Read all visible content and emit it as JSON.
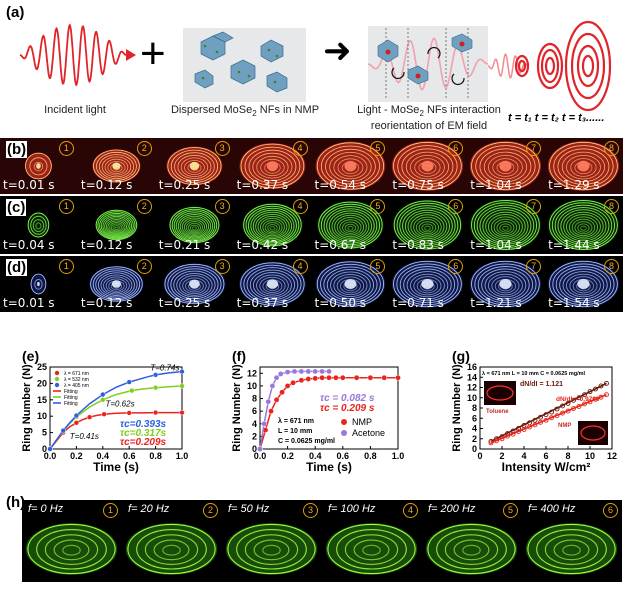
{
  "panel_a": {
    "label": "(a)",
    "incident_caption": "Incident light",
    "dispersed_caption_pre": "Dispersed MoSe",
    "dispersed_caption_sub": "2",
    "dispersed_caption_post": " NFs in NMP",
    "interaction_caption_line1": "Light - MoSe",
    "interaction_caption_sub": "2",
    "interaction_caption_line1_post": " NFs interaction",
    "interaction_caption_line2": "reorientation of EM field",
    "plus_symbol": "+",
    "arrow_symbol": "➜",
    "time_sequence": "t = t₁ t = t₂ t = t₃......"
  },
  "strip_b": {
    "label": "(b)",
    "color_core": "#fff2a0",
    "color_mid": "#ff3b2a",
    "frames": [
      {
        "num": "1",
        "time": "t=0.01 s"
      },
      {
        "num": "2",
        "time": "t=0.12 s"
      },
      {
        "num": "3",
        "time": "t=0.25 s"
      },
      {
        "num": "4",
        "time": "t=0.37 s"
      },
      {
        "num": "5",
        "time": "t=0.54 s"
      },
      {
        "num": "6",
        "time": "t=0.75 s"
      },
      {
        "num": "7",
        "time": "t=1.04 s"
      },
      {
        "num": "8",
        "time": "t=1.29 s"
      }
    ]
  },
  "strip_c": {
    "label": "(c)",
    "frames": [
      {
        "num": "1",
        "time": "t=0.04 s"
      },
      {
        "num": "2",
        "time": "t=0.12 s"
      },
      {
        "num": "3",
        "time": "t=0.21 s"
      },
      {
        "num": "4",
        "time": "t=0.42 s"
      },
      {
        "num": "5",
        "time": "t=0.67 s"
      },
      {
        "num": "6",
        "time": "t=0.83 s"
      },
      {
        "num": "7",
        "time": "t=1.04 s"
      },
      {
        "num": "8",
        "time": "t=1.44 s"
      }
    ]
  },
  "strip_d": {
    "label": "(d)",
    "frames": [
      {
        "num": "1",
        "time": "t=0.01 s"
      },
      {
        "num": "2",
        "time": "t=0.12 s"
      },
      {
        "num": "3",
        "time": "t=0.25 s"
      },
      {
        "num": "4",
        "time": "t=0.37 s"
      },
      {
        "num": "5",
        "time": "t=0.50 s"
      },
      {
        "num": "6",
        "time": "t=0.71 s"
      },
      {
        "num": "7",
        "time": "t=1.21 s"
      },
      {
        "num": "8",
        "time": "t=1.54 s"
      }
    ]
  },
  "strip_h": {
    "label": "(h)",
    "frames": [
      {
        "num": "1",
        "freq": "f= 0 Hz"
      },
      {
        "num": "2",
        "freq": "f= 20 Hz"
      },
      {
        "num": "3",
        "freq": "f= 50 Hz"
      },
      {
        "num": "4",
        "freq": "f= 100 Hz"
      },
      {
        "num": "5",
        "freq": "f= 200 Hz"
      },
      {
        "num": "6",
        "freq": "f= 400 Hz"
      }
    ]
  },
  "chart_data": [
    {
      "id": "e",
      "type": "line",
      "panel_label": "(e)",
      "xlabel": "Time (s)",
      "ylabel": "Ring Number (N)",
      "xlim": [
        0,
        1.0
      ],
      "ylim": [
        0,
        25
      ],
      "xticks": [
        "0.0",
        "0.2",
        "0.4",
        "0.6",
        "0.8",
        "1.0"
      ],
      "yticks": [
        "0",
        "5",
        "10",
        "15",
        "20",
        "25"
      ],
      "legend": [
        "λ = 671 nm",
        "λ = 532 nm",
        "λ = 405 nm",
        "Fitting",
        "Fitting",
        "Fitting"
      ],
      "series": [
        {
          "name": "λ = 671 nm",
          "color": "#e8241c",
          "x": [
            0,
            0.05,
            0.1,
            0.15,
            0.2,
            0.25,
            0.3,
            0.35,
            0.41,
            0.5,
            0.6,
            0.7,
            0.8,
            0.9,
            1.0
          ],
          "y": [
            0,
            2.5,
            5,
            6.8,
            8,
            9,
            9.7,
            10.2,
            10.6,
            10.9,
            11,
            11,
            11.1,
            11.1,
            11.1
          ]
        },
        {
          "name": "λ = 532 nm",
          "color": "#7fcf1f",
          "x": [
            0,
            0.05,
            0.1,
            0.15,
            0.2,
            0.3,
            0.4,
            0.5,
            0.62,
            0.7,
            0.8,
            0.9,
            1.0
          ],
          "y": [
            0,
            2.8,
            5.5,
            7.8,
            9.8,
            12.8,
            15,
            16.6,
            17.8,
            18.3,
            18.7,
            19,
            19.2
          ]
        },
        {
          "name": "λ = 405 nm",
          "color": "#2f5fe0",
          "x": [
            0,
            0.05,
            0.1,
            0.15,
            0.2,
            0.3,
            0.4,
            0.5,
            0.6,
            0.74,
            0.8,
            0.9,
            1.0
          ],
          "y": [
            0,
            2.8,
            5.6,
            8,
            10.2,
            13.8,
            16.6,
            18.8,
            20.4,
            22,
            22.6,
            23.2,
            23.6
          ]
        }
      ],
      "annotations": [
        "T=0.41s",
        "T=0.62s",
        "T=0.74s"
      ],
      "tau_labels": [
        {
          "text": "τc=0.393s",
          "color": "#2f5fe0"
        },
        {
          "text": "τc=0.317s",
          "color": "#7fcf1f"
        },
        {
          "text": "τc=0.209s",
          "color": "#e8241c"
        }
      ]
    },
    {
      "id": "f",
      "type": "line",
      "panel_label": "(f)",
      "xlabel": "Time (s)",
      "ylabel": "Ring Number (N)",
      "xlim": [
        0,
        1.0
      ],
      "ylim": [
        0,
        13
      ],
      "xticks": [
        "0.0",
        "0.2",
        "0.4",
        "0.6",
        "0.8",
        "1.0"
      ],
      "yticks": [
        "0",
        "2",
        "4",
        "6",
        "8",
        "10",
        "12"
      ],
      "legend": [
        "NMP",
        "Acetone"
      ],
      "params": [
        "λ = 671 nm",
        "L = 10 mm",
        "C = 0.0625 mg/ml"
      ],
      "series": [
        {
          "name": "NMP",
          "color": "#e8241c",
          "x": [
            0,
            0.04,
            0.08,
            0.12,
            0.16,
            0.2,
            0.24,
            0.3,
            0.35,
            0.4,
            0.45,
            0.5,
            0.55,
            0.6,
            0.7,
            0.8,
            0.9,
            1.0
          ],
          "y": [
            0,
            3,
            6,
            7.8,
            9,
            10,
            10.5,
            10.9,
            11.1,
            11.2,
            11.3,
            11.3,
            11.3,
            11.3,
            11.3,
            11.3,
            11.3,
            11.3
          ]
        },
        {
          "name": "Acetone",
          "color": "#9a78d8",
          "x": [
            0,
            0.03,
            0.06,
            0.09,
            0.12,
            0.15,
            0.2,
            0.25,
            0.3,
            0.35,
            0.4,
            0.45,
            0.5
          ],
          "y": [
            0,
            4,
            7.5,
            10,
            11.3,
            11.9,
            12.2,
            12.3,
            12.3,
            12.3,
            12.3,
            12.3,
            12.3
          ]
        }
      ],
      "tau_labels": [
        {
          "text": "τc = 0.082 s",
          "color": "#9a78d8"
        },
        {
          "text": "τc = 0.209 s",
          "color": "#e8241c"
        }
      ]
    },
    {
      "id": "g",
      "type": "scatter",
      "panel_label": "(g)",
      "xlabel": "Intensity W/cm²",
      "ylabel": "Ring Number (N)",
      "xlim": [
        0,
        12
      ],
      "ylim": [
        0,
        16
      ],
      "xticks": [
        "0",
        "2",
        "4",
        "6",
        "8",
        "10",
        "12"
      ],
      "yticks": [
        "0",
        "2",
        "4",
        "6",
        "8",
        "10",
        "12",
        "14",
        "16"
      ],
      "params": "λ = 671 nm  L = 10 mm  C = 0.0625 mg/ml",
      "series": [
        {
          "name": "Toluene",
          "color": "#6a1a0a",
          "slope_label": "dN/dI = 1.121",
          "x": [
            1,
            1.5,
            2,
            2.5,
            3,
            3.5,
            4,
            4.5,
            5,
            5.5,
            6,
            6.5,
            7,
            7.5,
            8,
            8.5,
            9,
            9.5,
            10,
            10.5,
            11,
            11.5
          ],
          "y": [
            1.5,
            2,
            2.4,
            3,
            3.5,
            4,
            4.6,
            5.1,
            5.6,
            6.2,
            6.7,
            7.2,
            7.8,
            8.4,
            8.9,
            9.5,
            10,
            10.6,
            11.2,
            11.7,
            12.3,
            12.8
          ]
        },
        {
          "name": "NMP",
          "color": "#e8241c",
          "slope_label": "dN/dI = 0.9760",
          "x": [
            1,
            1.5,
            2,
            2.5,
            3,
            3.5,
            4,
            4.5,
            5,
            5.5,
            6,
            6.5,
            7,
            7.5,
            8,
            8.5,
            9,
            9.5,
            10,
            10.5,
            11,
            11.5
          ],
          "y": [
            1.2,
            1.6,
            2,
            2.5,
            2.9,
            3.4,
            3.8,
            4.3,
            4.7,
            5.2,
            5.6,
            6.1,
            6.5,
            7,
            7.4,
            7.9,
            8.3,
            8.8,
            9.2,
            9.7,
            10.1,
            10.6
          ]
        }
      ]
    }
  ]
}
